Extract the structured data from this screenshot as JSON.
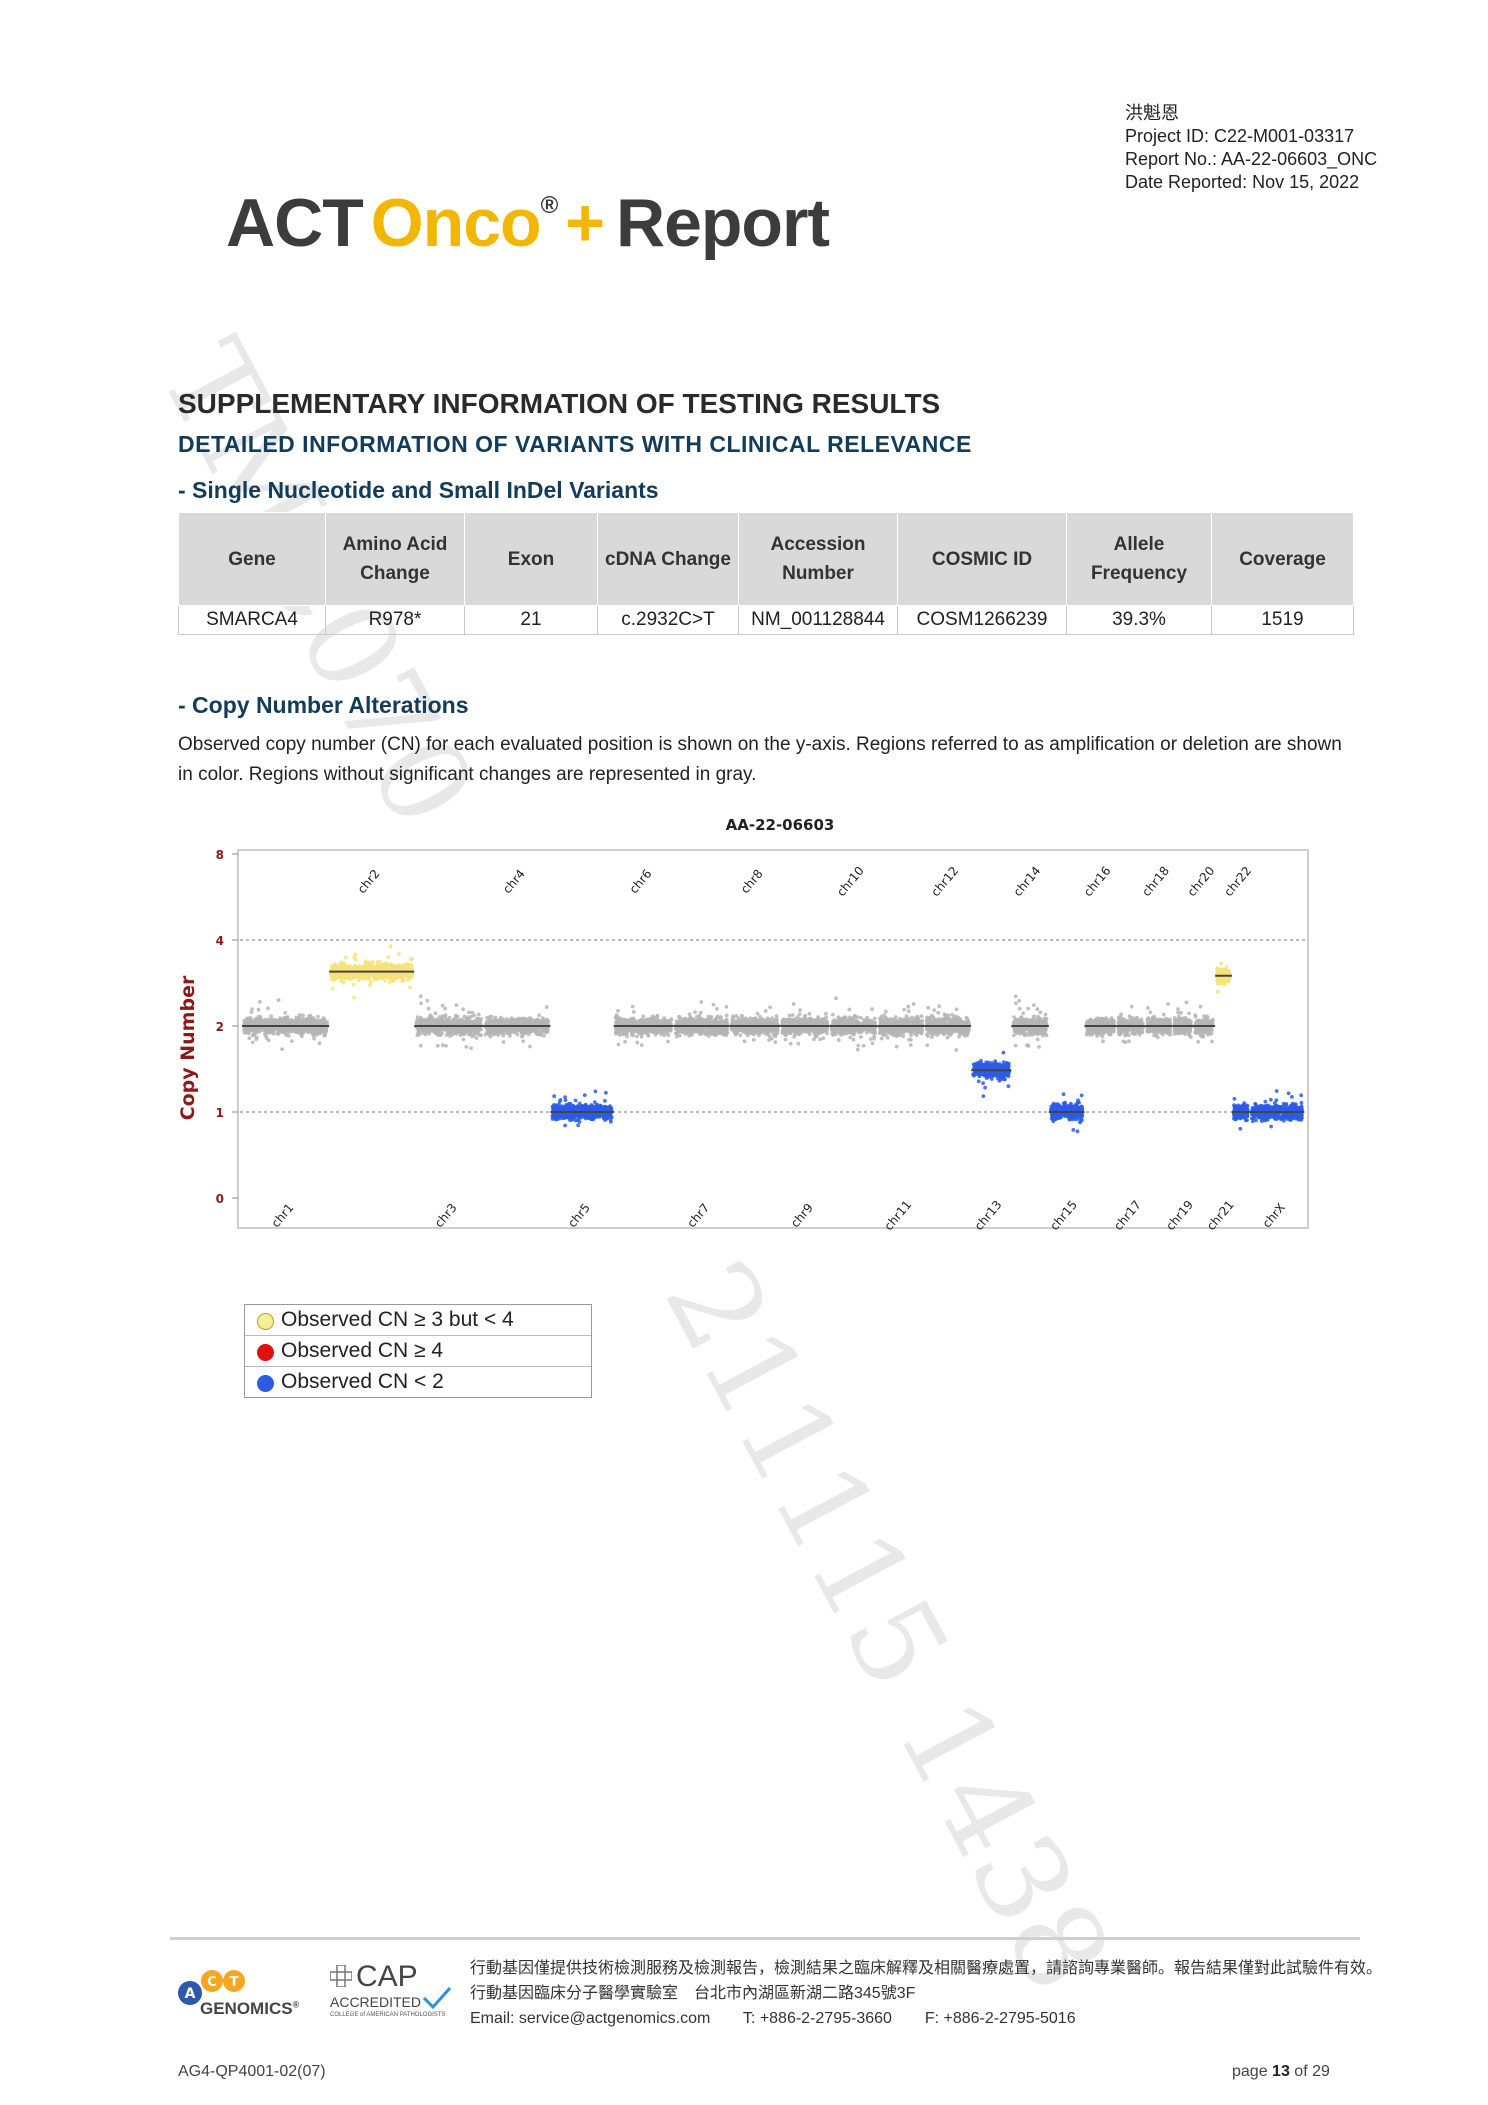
{
  "header": {
    "patient_name": "洪魁恩",
    "project_id": "Project ID: C22-M001-03317",
    "report_no": "Report No.: AA-22-06603_ONC",
    "date_reported": "Date Reported: Nov 15, 2022"
  },
  "logo": {
    "act": "ACT",
    "onco": "Onco",
    "reg": "®",
    "plus": "+",
    "report": "Report"
  },
  "watermark": {
    "line1": "TMC070",
    "line2": "211115 1438"
  },
  "section": {
    "title": "SUPPLEMENTARY INFORMATION OF TESTING RESULTS",
    "subtitle": "DETAILED INFORMATION OF VARIANTS WITH CLINICAL RELEVANCE"
  },
  "snv": {
    "heading": "- Single Nucleotide and Small InDel Variants",
    "columns": [
      "Gene",
      "Amino Acid Change",
      "Exon",
      "cDNA Change",
      "Accession Number",
      "COSMIC ID",
      "Allele Frequency",
      "Coverage"
    ],
    "rows": [
      [
        "SMARCA4",
        "R978*",
        "21",
        "c.2932C>T",
        "NM_001128844",
        "COSM1266239",
        "39.3%",
        "1519"
      ]
    ]
  },
  "cna": {
    "heading": "- Copy Number Alterations",
    "description": "Observed copy number (CN) for each evaluated position is shown on the y-axis. Regions referred to as amplification or deletion are shown in color. Regions without significant changes are represented in gray."
  },
  "chart_data": {
    "type": "scatter",
    "title": "AA-22-06603",
    "ylabel": "Copy Number",
    "xlabel": "",
    "ylim": [
      0,
      8
    ],
    "yscale": "log2",
    "yticks": [
      0,
      1,
      2,
      4,
      8
    ],
    "grid": "dashed lines at 1 and 4",
    "colors": {
      "gray": "#b5b5b5",
      "yellow": "#f5e27a",
      "blue": "#2b5ce6",
      "red": "#e01010",
      "segment": "#444444"
    },
    "chromosomes": [
      {
        "name": "chr1",
        "size": 249,
        "cn": 2.0,
        "color": "gray"
      },
      {
        "name": "chr2",
        "size": 243,
        "cn": 3.1,
        "color": "yellow"
      },
      {
        "name": "chr3",
        "size": 198,
        "cn": 2.0,
        "color": "gray"
      },
      {
        "name": "chr4",
        "size": 191,
        "cn": 2.0,
        "color": "gray"
      },
      {
        "name": "chr5",
        "size": 181,
        "cn": 1.0,
        "color": "blue"
      },
      {
        "name": "chr6",
        "size": 171,
        "cn": 2.0,
        "color": "gray"
      },
      {
        "name": "chr7",
        "size": 159,
        "cn": 2.0,
        "color": "gray"
      },
      {
        "name": "chr8",
        "size": 146,
        "cn": 2.0,
        "color": "gray"
      },
      {
        "name": "chr9",
        "size": 141,
        "cn": 2.0,
        "color": "gray"
      },
      {
        "name": "chr10",
        "size": 136,
        "cn": 2.0,
        "color": "gray"
      },
      {
        "name": "chr11",
        "size": 135,
        "cn": 2.0,
        "color": "gray"
      },
      {
        "name": "chr12",
        "size": 133,
        "cn": 2.0,
        "color": "gray"
      },
      {
        "name": "chr13",
        "size": 115,
        "cn": 1.4,
        "color": "blue"
      },
      {
        "name": "chr14",
        "size": 107,
        "cn": 2.0,
        "color": "gray"
      },
      {
        "name": "chr15",
        "size": 102,
        "cn": 1.0,
        "color": "blue"
      },
      {
        "name": "chr16",
        "size": 90,
        "cn": 2.0,
        "color": "gray"
      },
      {
        "name": "chr17",
        "size": 83,
        "cn": 2.0,
        "color": "gray"
      },
      {
        "name": "chr18",
        "size": 78,
        "cn": 2.0,
        "color": "gray"
      },
      {
        "name": "chr19",
        "size": 59,
        "cn": 2.0,
        "color": "gray"
      },
      {
        "name": "chr20",
        "size": 63,
        "cn": 2.0,
        "color": "gray"
      },
      {
        "name": "chr21",
        "size": 48,
        "cn": 3.0,
        "color": "yellow"
      },
      {
        "name": "chr22",
        "size": 51,
        "cn": 1.0,
        "color": "blue"
      },
      {
        "name": "chrX",
        "size": 155,
        "cn": 1.0,
        "color": "blue"
      }
    ]
  },
  "legend": {
    "items": [
      {
        "label": "Observed CN ≥ 3 but < 4",
        "color": "#f7ee9a",
        "border": "#b8a400"
      },
      {
        "label": "Observed CN ≥ 4",
        "color": "#e01010",
        "border": "#e01010"
      },
      {
        "label": "Observed CN < 2",
        "color": "#2b5ce6",
        "border": "#2b5ce6"
      }
    ]
  },
  "footer": {
    "act_logo_text": "GENOMICS",
    "act_reg": "®",
    "cap_text": "CAP",
    "cap_accredited": "ACCREDITED",
    "cap_college": "COLLEGE of AMERICAN PATHOLOGISTS",
    "line1": "行動基因僅提供技術檢測服務及檢測報告，檢測結果之臨床解釋及相關醫療處置，請諮詢專業醫師。報告結果僅對此試驗件有效。",
    "line2": "行動基因臨床分子醫學實驗室　台北市內湖區新湖二路345號3F",
    "email": "Email: service@actgenomics.com",
    "phone": "T: +886-2-2795-3660",
    "fax": "F: +886-2-2795-5016",
    "doc_code": "AG4-QP4001-02(07)",
    "page_prefix": "page ",
    "page_current": "13",
    "page_of": " of ",
    "page_total": "29"
  }
}
